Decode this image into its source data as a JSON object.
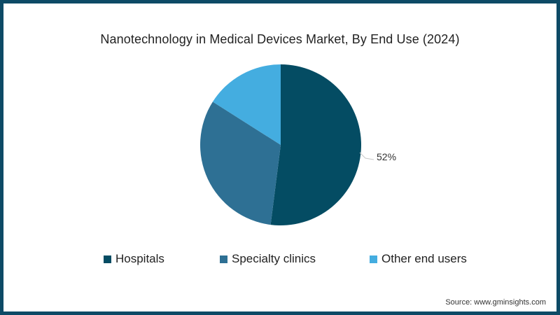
{
  "title": "Nanotechnology in Medical Devices Market, By End Use (2024)",
  "slice_label": "52%",
  "legend": [
    {
      "label": "Hospitals",
      "color": "#044c63"
    },
    {
      "label": "Specialty clinics",
      "color": "#2e7094"
    },
    {
      "label": "Other end users",
      "color": "#44ade0"
    }
  ],
  "source": "Source: www.gminsights.com",
  "colors": {
    "border": "#0d4a66",
    "background": "#ffffff"
  },
  "chart_data": {
    "type": "pie",
    "title": "Nanotechnology in Medical Devices Market, By End Use (2024)",
    "categories": [
      "Hospitals",
      "Specialty clinics",
      "Other end users"
    ],
    "values": [
      52,
      32,
      16
    ],
    "colors": [
      "#044c63",
      "#2e7094",
      "#44ade0"
    ],
    "data_labels": {
      "Hospitals": "52%"
    },
    "start_angle": "12 o'clock, clockwise",
    "legend_position": "bottom",
    "unit": "% share",
    "note": "Only the Hospitals share (52%) is labeled; other shares estimated from slice angles."
  }
}
